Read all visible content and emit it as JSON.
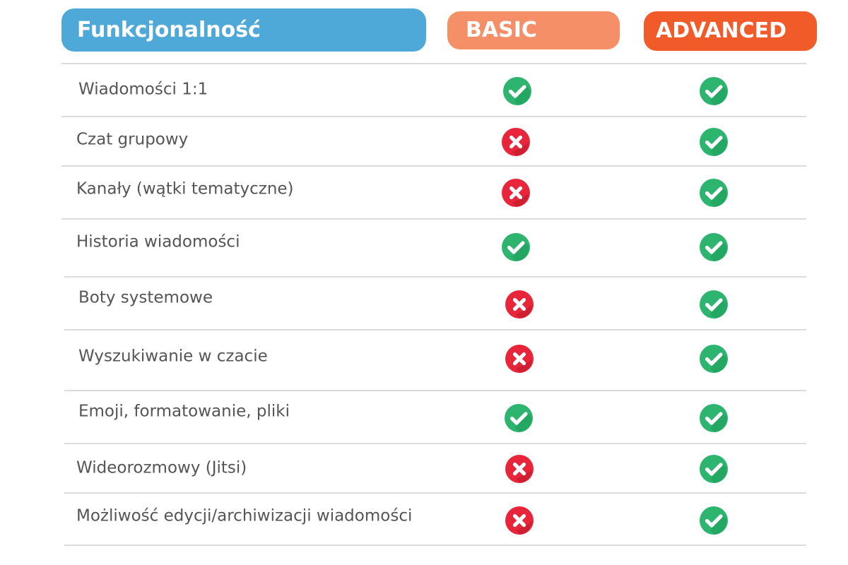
{
  "header": {
    "feature_label": "Funkcjonalność",
    "basic_label": "BASIC",
    "advanced_label": "ADVANCED"
  },
  "colors": {
    "feature_header_bg": "#4ea9d8",
    "basic_header_bg": "#f58f68",
    "advanced_header_bg": "#f15a29",
    "check_green": "#2db56f",
    "check_green_shadow": "#1f9a5b",
    "cross_red": "#e8253a",
    "cross_red_shadow": "#b5172a",
    "label_text": "#555555",
    "divider": "#dcdcdc"
  },
  "icons": {
    "yes": "check-circle-icon",
    "no": "cross-circle-icon"
  },
  "rows": [
    {
      "label": "Wiadomości 1:1",
      "basic": true,
      "advanced": true
    },
    {
      "label": "Czat grupowy",
      "basic": false,
      "advanced": true
    },
    {
      "label": "Kanały (wątki tematyczne)",
      "basic": false,
      "advanced": true
    },
    {
      "label": "Historia wiadomości",
      "basic": true,
      "advanced": true
    },
    {
      "label": "Boty systemowe",
      "basic": false,
      "advanced": true
    },
    {
      "label": "Wyszukiwanie w czacie",
      "basic": false,
      "advanced": true
    },
    {
      "label": "Emoji, formatowanie, pliki",
      "basic": true,
      "advanced": true
    },
    {
      "label": "Wideorozmowy (Jitsi)",
      "basic": false,
      "advanced": true
    },
    {
      "label": "Możliwość edycji/archiwizacji wiadomości",
      "basic": false,
      "advanced": true
    }
  ]
}
